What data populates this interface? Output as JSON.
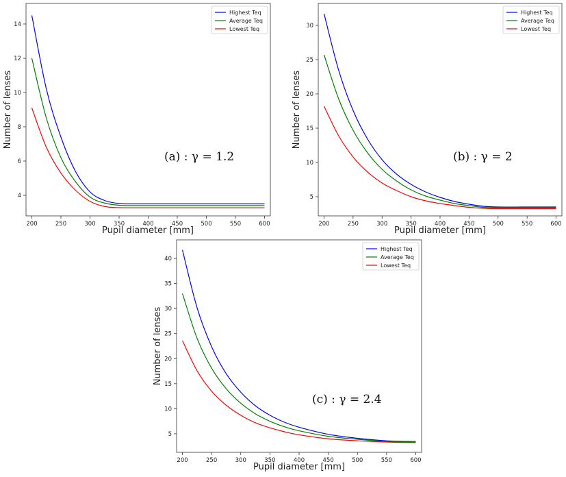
{
  "chart_data": [
    {
      "type": "line",
      "annotation": "(a)  : γ = 1.2",
      "xlabel": "Pupil diameter [mm]",
      "ylabel": "Number of lenses",
      "xlim": [
        190,
        610
      ],
      "ylim": [
        2.8,
        15.2
      ],
      "xticks": [
        200,
        250,
        300,
        350,
        400,
        450,
        500,
        550,
        600
      ],
      "yticks": [
        4,
        6,
        8,
        10,
        12,
        14
      ],
      "legend_position": "top-right",
      "x": [
        200,
        225,
        250,
        275,
        300,
        325,
        350,
        375,
        400,
        450,
        500,
        550,
        600
      ],
      "series": [
        {
          "name": "Highest Teq",
          "color": "#0000ff",
          "values": [
            14.5,
            10.2,
            7.4,
            5.4,
            4.2,
            3.7,
            3.52,
            3.5,
            3.5,
            3.5,
            3.5,
            3.5,
            3.5
          ]
        },
        {
          "name": "Average Teq",
          "color": "#008000",
          "values": [
            12.0,
            8.5,
            6.2,
            4.8,
            3.9,
            3.55,
            3.42,
            3.4,
            3.4,
            3.4,
            3.4,
            3.4,
            3.4
          ]
        },
        {
          "name": "Lowest Teq",
          "color": "#ff0000",
          "values": [
            9.1,
            6.8,
            5.3,
            4.3,
            3.65,
            3.35,
            3.28,
            3.27,
            3.27,
            3.27,
            3.27,
            3.27,
            3.27
          ]
        }
      ]
    },
    {
      "type": "line",
      "annotation": "(b)  : γ = 2",
      "xlabel": "Pupil diameter [mm]",
      "ylabel": "Number of lenses",
      "xlim": [
        190,
        610
      ],
      "ylim": [
        2.2,
        33.2
      ],
      "xticks": [
        200,
        250,
        300,
        350,
        400,
        450,
        500,
        550,
        600
      ],
      "yticks": [
        5,
        10,
        15,
        20,
        25,
        30
      ],
      "legend_position": "top-right",
      "x": [
        200,
        225,
        250,
        275,
        300,
        325,
        350,
        375,
        400,
        425,
        450,
        475,
        500,
        550,
        600
      ],
      "series": [
        {
          "name": "Highest Teq",
          "color": "#0000ff",
          "values": [
            31.7,
            23.5,
            17.6,
            13.4,
            10.4,
            8.3,
            6.8,
            5.7,
            4.9,
            4.3,
            3.9,
            3.6,
            3.5,
            3.5,
            3.5
          ]
        },
        {
          "name": "Average Teq",
          "color": "#008000",
          "values": [
            25.7,
            19.3,
            14.7,
            11.4,
            9.0,
            7.3,
            6.0,
            5.1,
            4.5,
            4.0,
            3.7,
            3.45,
            3.4,
            3.4,
            3.4
          ]
        },
        {
          "name": "Lowest Teq",
          "color": "#ff0000",
          "values": [
            18.2,
            13.9,
            10.8,
            8.6,
            7.0,
            5.9,
            5.0,
            4.4,
            4.0,
            3.7,
            3.45,
            3.3,
            3.25,
            3.25,
            3.25
          ]
        }
      ]
    },
    {
      "type": "line",
      "annotation": "(c)  : γ = 2.4",
      "xlabel": "Pupil diameter [mm]",
      "ylabel": "Number of lenses",
      "xlim": [
        190,
        610
      ],
      "ylim": [
        1.3,
        43.7
      ],
      "xticks": [
        200,
        250,
        300,
        350,
        400,
        450,
        500,
        550,
        600
      ],
      "yticks": [
        5,
        10,
        15,
        20,
        25,
        30,
        35,
        40
      ],
      "legend_position": "top-right",
      "x": [
        200,
        225,
        250,
        275,
        300,
        325,
        350,
        375,
        400,
        450,
        500,
        550,
        600
      ],
      "series": [
        {
          "name": "Highest Teq",
          "color": "#0000ff",
          "values": [
            41.7,
            30.2,
            22.4,
            17.0,
            13.3,
            10.6,
            8.7,
            7.3,
            6.3,
            4.9,
            4.1,
            3.6,
            3.45
          ]
        },
        {
          "name": "Average Teq",
          "color": "#008000",
          "values": [
            33.0,
            24.1,
            18.1,
            14.0,
            11.1,
            9.0,
            7.5,
            6.4,
            5.6,
            4.5,
            3.9,
            3.5,
            3.4
          ]
        },
        {
          "name": "Lowest Teq",
          "color": "#ff0000",
          "values": [
            23.6,
            17.6,
            13.5,
            10.7,
            8.7,
            7.2,
            6.2,
            5.4,
            4.8,
            4.0,
            3.6,
            3.35,
            3.25
          ]
        }
      ]
    }
  ]
}
